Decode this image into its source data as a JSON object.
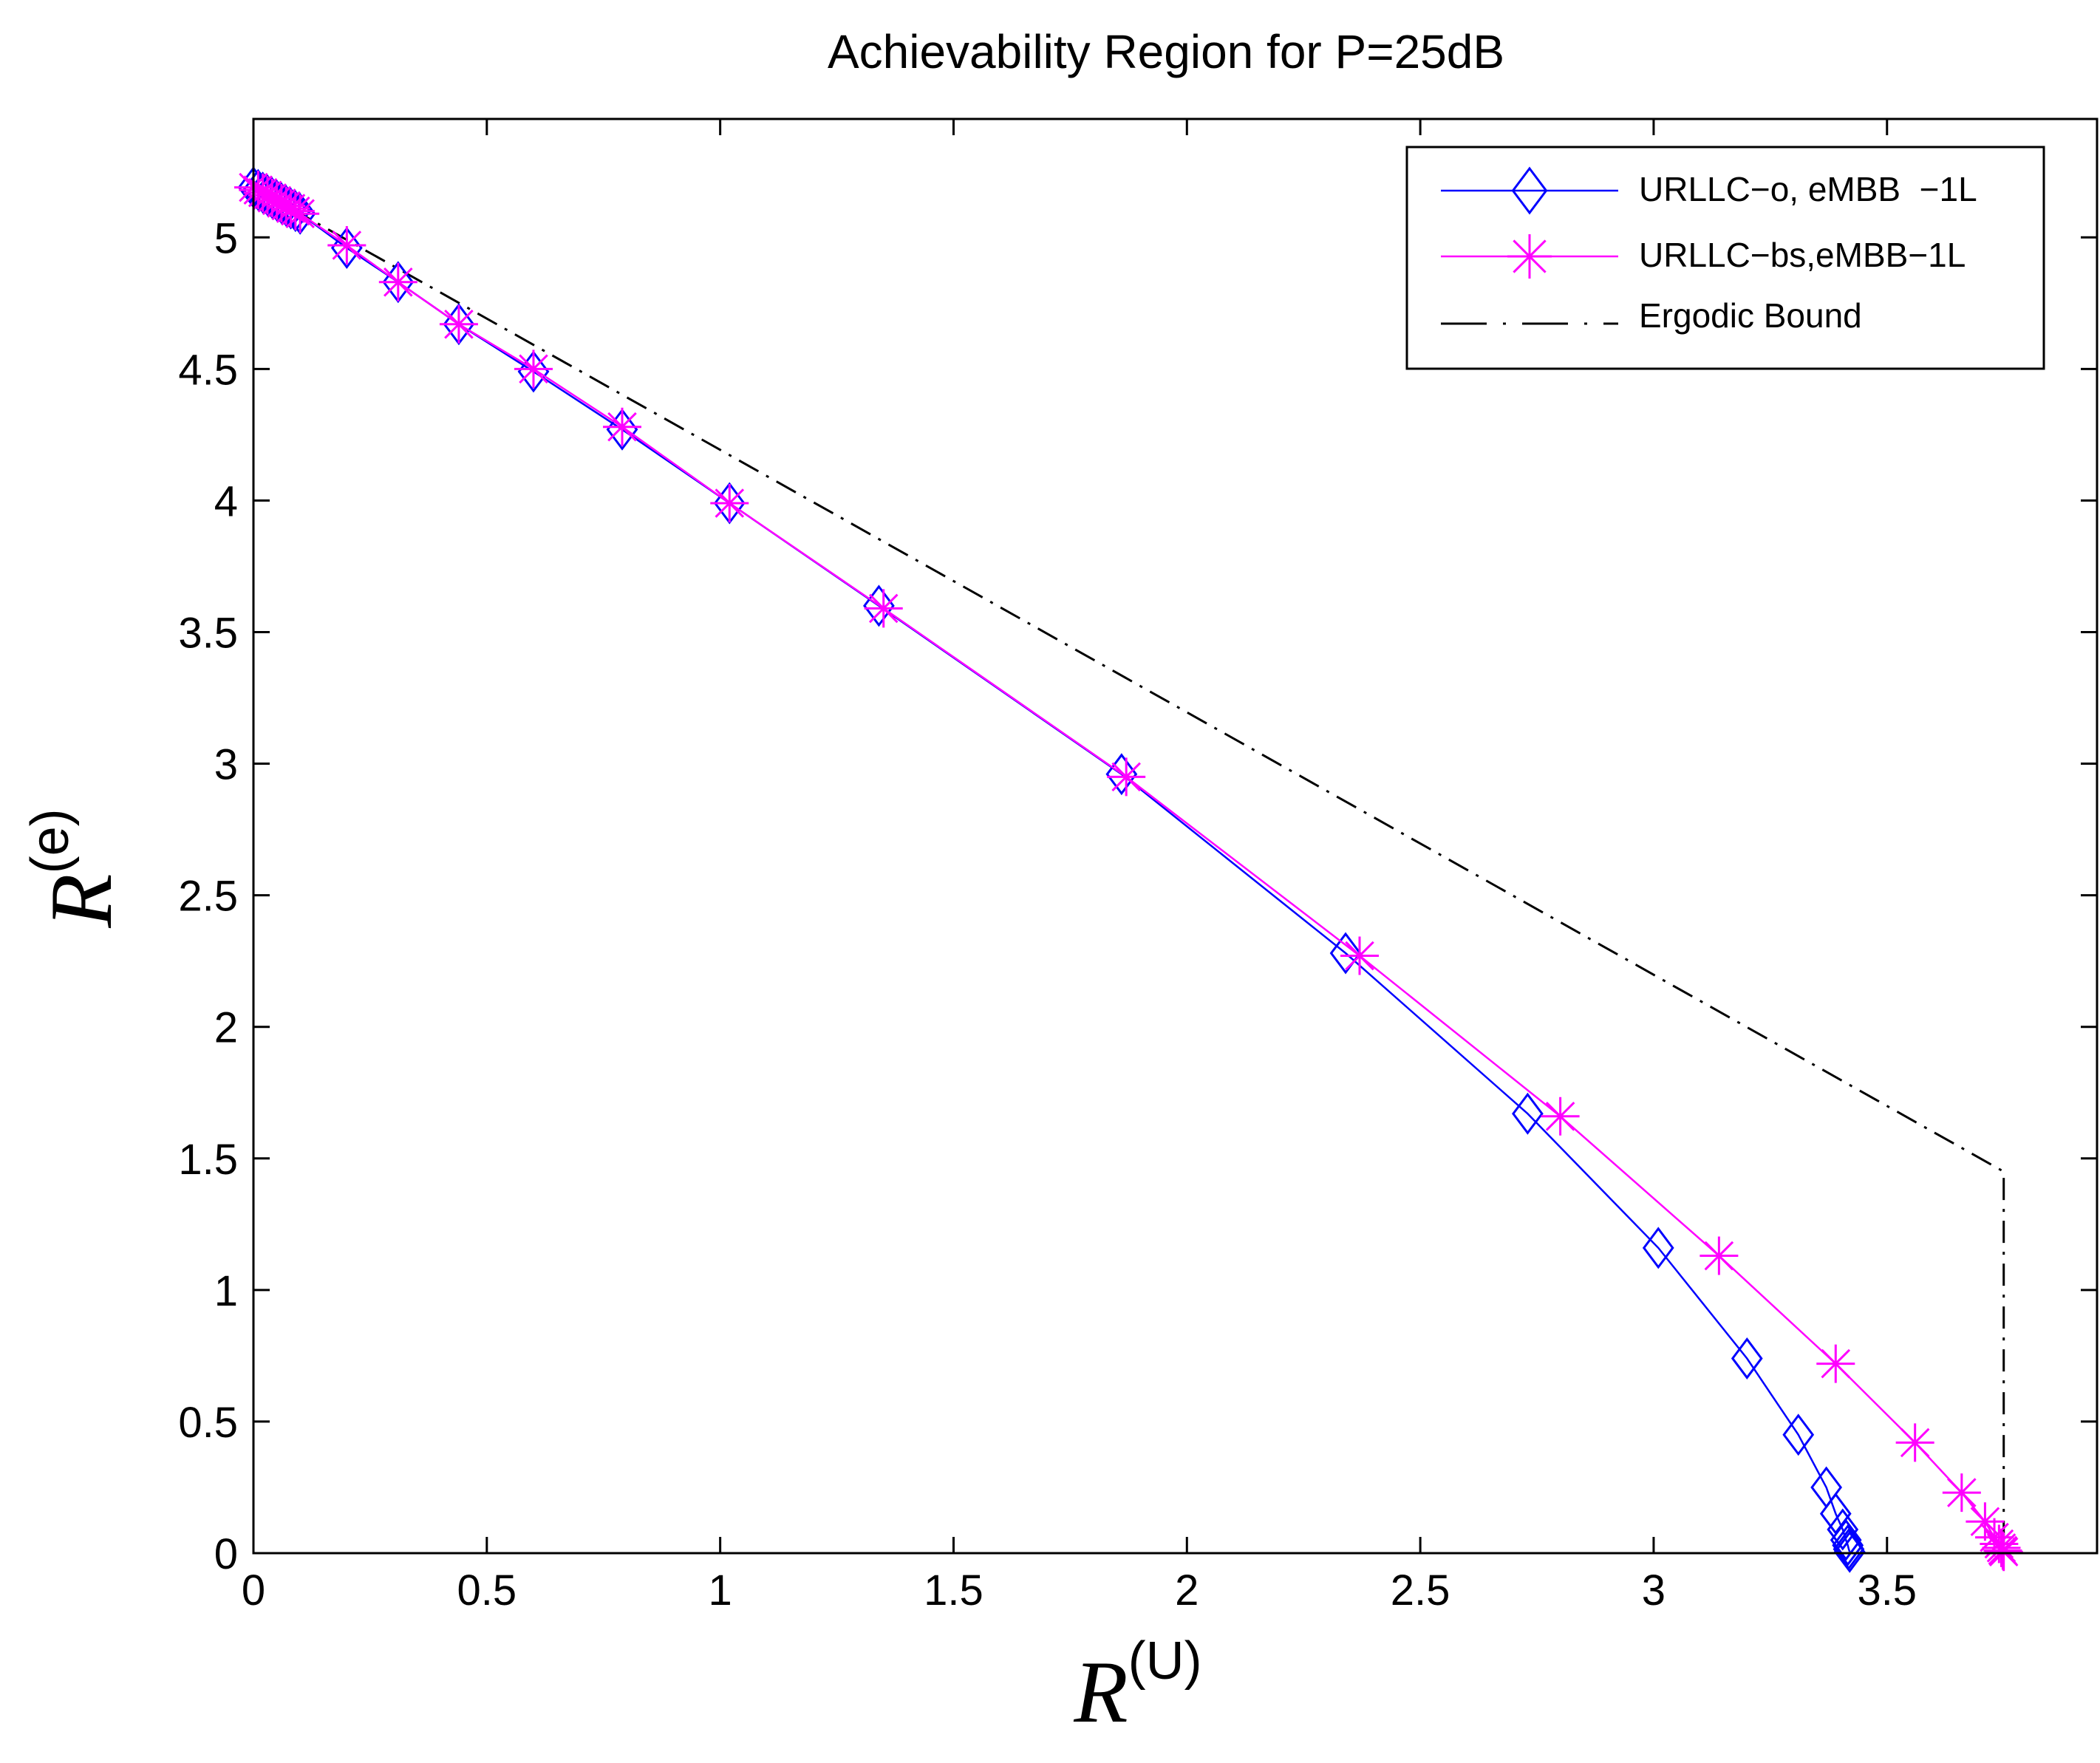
{
  "chart_data": {
    "type": "line",
    "title": "Achievability Region for P=25dB",
    "xlabel": {
      "base": "R",
      "sup": "(U)"
    },
    "ylabel": {
      "base": "R",
      "sup": "(e)"
    },
    "xlim": [
      0,
      3.95
    ],
    "ylim": [
      0,
      5.45
    ],
    "xticks": [
      0,
      0.5,
      1,
      1.5,
      2,
      2.5,
      3,
      3.5
    ],
    "xtick_labels": [
      "0",
      "0.5",
      "1",
      "1.5",
      "2",
      "2.5",
      "3",
      "3.5"
    ],
    "yticks": [
      0,
      0.5,
      1,
      1.5,
      2,
      2.5,
      3,
      3.5,
      4,
      4.5,
      5
    ],
    "ytick_labels": [
      "0",
      "0.5",
      "1",
      "1.5",
      "2",
      "2.5",
      "3",
      "3.5",
      "4",
      "4.5",
      "5"
    ],
    "grid": false,
    "legend_position": "top-right",
    "series": [
      {
        "name": "URLLC−o, eMBB  −1L",
        "color": "#0000ff",
        "marker": "diamond",
        "linestyle": "solid",
        "x": [
          0.0,
          0.01,
          0.02,
          0.03,
          0.04,
          0.05,
          0.06,
          0.07,
          0.08,
          0.09,
          0.1,
          0.2,
          0.31,
          0.44,
          0.6,
          0.79,
          1.02,
          1.34,
          1.86,
          2.34,
          2.73,
          3.01,
          3.2,
          3.31,
          3.37,
          3.39,
          3.405,
          3.412,
          3.416,
          3.418,
          3.42
        ],
        "y": [
          5.19,
          5.18,
          5.17,
          5.16,
          5.15,
          5.14,
          5.13,
          5.12,
          5.11,
          5.1,
          5.09,
          4.96,
          4.83,
          4.67,
          4.49,
          4.27,
          3.99,
          3.6,
          2.96,
          2.28,
          1.67,
          1.16,
          0.74,
          0.45,
          0.25,
          0.15,
          0.09,
          0.05,
          0.03,
          0.015,
          0.005
        ]
      },
      {
        "name": "URLLC−bs,eMBB−1L",
        "color": "#ff00ff",
        "marker": "star",
        "linestyle": "solid",
        "x": [
          0.0,
          0.01,
          0.02,
          0.03,
          0.04,
          0.05,
          0.06,
          0.07,
          0.08,
          0.09,
          0.1,
          0.2,
          0.31,
          0.44,
          0.6,
          0.79,
          1.02,
          1.35,
          1.87,
          2.37,
          2.8,
          3.14,
          3.39,
          3.56,
          3.66,
          3.71,
          3.73,
          3.74,
          3.745,
          3.748,
          3.75
        ],
        "y": [
          5.19,
          5.18,
          5.17,
          5.16,
          5.15,
          5.14,
          5.13,
          5.12,
          5.11,
          5.1,
          5.09,
          4.97,
          4.83,
          4.67,
          4.5,
          4.28,
          3.99,
          3.59,
          2.95,
          2.27,
          1.66,
          1.13,
          0.72,
          0.42,
          0.23,
          0.12,
          0.06,
          0.035,
          0.02,
          0.01,
          0.005
        ]
      },
      {
        "name": "Ergodic Bound",
        "color": "#000000",
        "marker": "none",
        "linestyle": "dashdot",
        "x": [
          0.0,
          3.75,
          3.75
        ],
        "y": [
          5.19,
          1.45,
          0.0
        ]
      }
    ]
  }
}
